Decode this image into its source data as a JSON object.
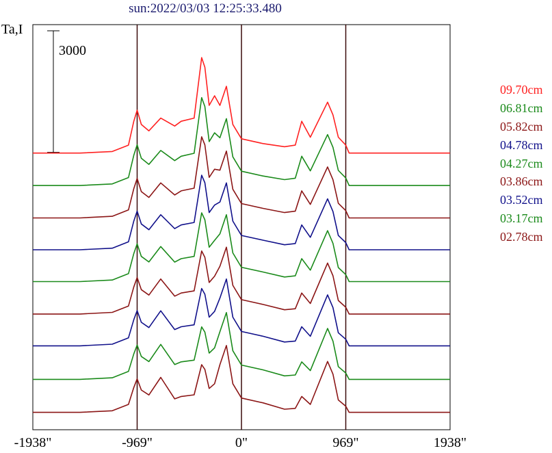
{
  "header": {
    "title": "sun:2022/03/03 12:25:33.480"
  },
  "chart_data": {
    "type": "line",
    "ylabel": "Ta,I",
    "scale_bar_label": "3000",
    "x_ticks": [
      {
        "value": -1938,
        "label": "-1938\""
      },
      {
        "value": -969,
        "label": "-969\""
      },
      {
        "value": 0,
        "label": "0\""
      },
      {
        "value": 969,
        "label": "969\""
      },
      {
        "value": 1938,
        "label": "1938\""
      }
    ],
    "xlim": [
      -1938,
      1938
    ],
    "vertical_lines": [
      -969,
      0,
      969
    ],
    "series": [
      {
        "name": "09.70cm",
        "color": "#ff2020",
        "offset": 3780,
        "peak": 1.0,
        "limb": 1.0,
        "x": [
          -1938,
          -1500,
          -1200,
          -1050,
          -1000,
          -969,
          -930,
          -860,
          -750,
          -620,
          -560,
          -440,
          -370,
          -340,
          -300,
          -250,
          -200,
          -140,
          -80,
          0,
          200,
          400,
          500,
          560,
          640,
          800,
          850,
          900,
          969,
          1000,
          1080,
          1150,
          1250,
          1350,
          1500,
          1938
        ],
        "y": [
          0,
          0,
          50,
          250,
          1000,
          1350,
          900,
          700,
          1100,
          850,
          1000,
          1100,
          3000,
          2700,
          1500,
          1800,
          1500,
          2100,
          900,
          450,
          300,
          200,
          250,
          1000,
          500,
          1600,
          1200,
          500,
          250,
          0,
          0,
          0,
          0,
          0,
          0,
          0
        ]
      },
      {
        "name": "06.81cm",
        "color": "#1a8a1a",
        "offset": 3220,
        "peak": 0.92,
        "limb": 0.95,
        "x": [
          -1938,
          -1500,
          -1200,
          -1050,
          -1000,
          -969,
          -930,
          -860,
          -750,
          -620,
          -560,
          -440,
          -370,
          -340,
          -300,
          -250,
          -200,
          -140,
          -80,
          0,
          200,
          400,
          500,
          560,
          640,
          800,
          850,
          900,
          969,
          1000,
          1080,
          1150,
          1250,
          1350,
          1500,
          1938
        ],
        "y": [
          0,
          0,
          50,
          250,
          1000,
          1350,
          900,
          700,
          1100,
          850,
          1000,
          1100,
          3000,
          2700,
          1500,
          1800,
          1500,
          2100,
          900,
          450,
          300,
          200,
          250,
          1000,
          500,
          1600,
          1200,
          500,
          250,
          0,
          0,
          0,
          0,
          0,
          0,
          0
        ]
      },
      {
        "name": "05.82cm",
        "color": "#8b1515",
        "offset": 2660,
        "peak": 0.85,
        "limb": 0.92,
        "x": [
          -1938,
          -1500,
          -1200,
          -1050,
          -1000,
          -969,
          -930,
          -860,
          -750,
          -620,
          -560,
          -440,
          -370,
          -340,
          -300,
          -250,
          -200,
          -140,
          -80,
          0,
          200,
          400,
          500,
          560,
          640,
          800,
          850,
          900,
          969,
          1000,
          1080,
          1150,
          1250,
          1350,
          1500,
          1938
        ],
        "y": [
          0,
          0,
          50,
          250,
          1000,
          1350,
          900,
          700,
          1100,
          850,
          1000,
          1100,
          3000,
          2700,
          1500,
          1800,
          1500,
          2100,
          900,
          450,
          300,
          200,
          250,
          1000,
          500,
          1600,
          1200,
          500,
          250,
          0,
          0,
          0,
          0,
          0,
          0,
          0
        ]
      },
      {
        "name": "04.78cm",
        "color": "#10108a",
        "offset": 2110,
        "peak": 0.78,
        "limb": 0.9,
        "x": [
          -1938,
          -1500,
          -1200,
          -1050,
          -1000,
          -969,
          -930,
          -860,
          -750,
          -620,
          -560,
          -440,
          -370,
          -340,
          -300,
          -250,
          -200,
          -140,
          -80,
          0,
          200,
          400,
          500,
          560,
          640,
          800,
          850,
          900,
          969,
          1000,
          1080,
          1150,
          1250,
          1350,
          1500,
          1938
        ],
        "y": [
          0,
          0,
          50,
          250,
          1000,
          1350,
          900,
          700,
          1100,
          850,
          1000,
          1100,
          3000,
          2700,
          1500,
          1800,
          1500,
          2100,
          900,
          450,
          300,
          200,
          250,
          1000,
          500,
          1600,
          1200,
          500,
          250,
          0,
          0,
          0,
          0,
          0,
          0,
          0
        ]
      },
      {
        "name": "04.27cm",
        "color": "#1a8a1a",
        "offset": 1560,
        "peak": 0.72,
        "limb": 0.88,
        "x": [
          -1938,
          -1500,
          -1200,
          -1050,
          -1000,
          -969,
          -930,
          -860,
          -750,
          -620,
          -560,
          -440,
          -370,
          -340,
          -300,
          -250,
          -200,
          -140,
          -80,
          0,
          200,
          400,
          500,
          560,
          640,
          800,
          850,
          900,
          969,
          1000,
          1080,
          1150,
          1250,
          1350,
          1500,
          1938
        ],
        "y": [
          0,
          0,
          50,
          250,
          1000,
          1350,
          900,
          700,
          1100,
          850,
          1000,
          1100,
          3000,
          2700,
          1500,
          1800,
          1500,
          2100,
          900,
          450,
          300,
          200,
          250,
          1000,
          500,
          1600,
          1200,
          500,
          250,
          0,
          0,
          0,
          0,
          0,
          0,
          0
        ]
      },
      {
        "name": "03.86cm",
        "color": "#8b1515",
        "offset": 1000,
        "peak": 0.66,
        "limb": 0.85,
        "x": [
          -1938,
          -1500,
          -1200,
          -1050,
          -1000,
          -969,
          -930,
          -860,
          -750,
          -620,
          -560,
          -440,
          -370,
          -340,
          -300,
          -250,
          -200,
          -140,
          -80,
          0,
          200,
          400,
          500,
          560,
          640,
          800,
          850,
          900,
          969,
          1000,
          1080,
          1150,
          1250,
          1350,
          1500,
          1938
        ],
        "y": [
          0,
          0,
          50,
          250,
          1000,
          1350,
          900,
          700,
          1100,
          850,
          1000,
          1100,
          3000,
          2700,
          1500,
          1800,
          1500,
          2100,
          900,
          450,
          300,
          200,
          250,
          1000,
          500,
          1600,
          1200,
          500,
          250,
          0,
          0,
          0,
          0,
          0,
          0,
          0
        ]
      },
      {
        "name": "03.52cm",
        "color": "#10108a",
        "offset": 450,
        "peak": 0.6,
        "limb": 0.82,
        "x": [
          -1938,
          -1500,
          -1200,
          -1050,
          -1000,
          -969,
          -930,
          -860,
          -750,
          -620,
          -560,
          -440,
          -370,
          -340,
          -300,
          -250,
          -200,
          -140,
          -80,
          0,
          200,
          400,
          500,
          560,
          640,
          800,
          850,
          900,
          969,
          1000,
          1080,
          1150,
          1250,
          1350,
          1500,
          1938
        ],
        "y": [
          0,
          0,
          50,
          250,
          1000,
          1350,
          900,
          700,
          1100,
          850,
          1000,
          1100,
          3000,
          2700,
          1500,
          1800,
          1500,
          2100,
          900,
          450,
          300,
          200,
          250,
          1000,
          500,
          1600,
          1200,
          500,
          250,
          0,
          0,
          0,
          0,
          0,
          0,
          0
        ]
      },
      {
        "name": "03.17cm",
        "color": "#1a8a1a",
        "offset": -130,
        "peak": 0.55,
        "limb": 0.8,
        "x": [
          -1938,
          -1500,
          -1200,
          -1050,
          -1000,
          -969,
          -930,
          -860,
          -750,
          -620,
          -560,
          -440,
          -370,
          -340,
          -300,
          -250,
          -200,
          -140,
          -80,
          0,
          200,
          400,
          500,
          560,
          640,
          800,
          850,
          900,
          969,
          1000,
          1080,
          1150,
          1250,
          1350,
          1500,
          1938
        ],
        "y": [
          0,
          0,
          50,
          250,
          1000,
          1350,
          900,
          700,
          1100,
          850,
          1000,
          1100,
          3000,
          2700,
          1500,
          1800,
          1500,
          2100,
          900,
          450,
          300,
          200,
          250,
          1000,
          500,
          1600,
          1200,
          500,
          250,
          0,
          0,
          0,
          0,
          0,
          0,
          0
        ]
      },
      {
        "name": "02.78cm",
        "color": "#8b1515",
        "offset": -700,
        "peak": 0.5,
        "limb": 0.78,
        "x": [
          -1938,
          -1500,
          -1200,
          -1050,
          -1000,
          -969,
          -930,
          -860,
          -750,
          -620,
          -560,
          -440,
          -370,
          -340,
          -300,
          -250,
          -200,
          -140,
          -80,
          0,
          200,
          400,
          500,
          560,
          640,
          800,
          850,
          900,
          969,
          1000,
          1080,
          1150,
          1250,
          1350,
          1500,
          1938
        ],
        "y": [
          0,
          0,
          50,
          250,
          1000,
          1350,
          900,
          700,
          1100,
          850,
          1000,
          1100,
          3000,
          2700,
          1500,
          1800,
          1500,
          2100,
          900,
          450,
          300,
          200,
          250,
          1000,
          500,
          1600,
          1200,
          500,
          250,
          0,
          0,
          0,
          0,
          0,
          0,
          0
        ]
      }
    ],
    "ylim": [
      -1000,
      6000
    ],
    "scale_bar_value": 3000,
    "grid": false,
    "legend_placement": "right"
  },
  "colors": {
    "axis": "#000000",
    "vline": "#3a0a0a",
    "title": "#1a1a6e"
  }
}
